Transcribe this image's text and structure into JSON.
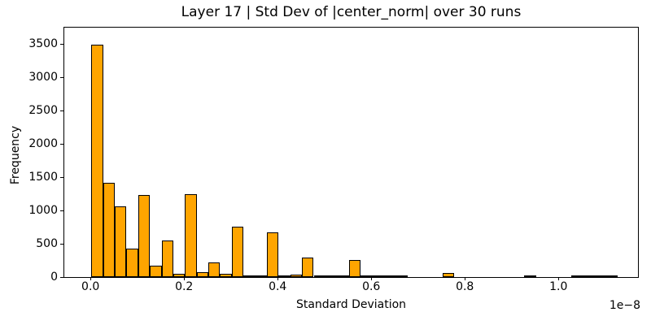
{
  "chart_data": {
    "type": "bar",
    "subtype": "histogram",
    "title": "Layer 17 | Std Dev of |center_norm| over 30 runs",
    "xlabel": "Standard Deviation",
    "ylabel": "Frequency",
    "x_offset_text": "1e−8",
    "bar_color": "#ffa500",
    "bar_edge_color": "#000000",
    "grid": false,
    "x_unit_multiplier": 1e-08,
    "bin_start": 0.002,
    "bin_width": 0.025,
    "counts": [
      3490,
      1415,
      1055,
      430,
      1235,
      165,
      545,
      55,
      1245,
      70,
      215,
      45,
      755,
      15,
      30,
      670,
      25,
      35,
      290,
      10,
      10,
      10,
      250,
      8,
      8,
      8,
      25,
      0,
      0,
      0,
      65,
      0,
      0,
      0,
      0,
      0,
      0,
      20,
      0,
      0,
      0,
      10,
      10,
      10,
      10,
      0
    ],
    "xlim": [
      -0.056,
      1.17
    ],
    "ylim": [
      0,
      3740
    ],
    "xticks": {
      "values": [
        0.0,
        0.2,
        0.4,
        0.6,
        0.8,
        1.0
      ],
      "labels": [
        "0.0",
        "0.2",
        "0.4",
        "0.6",
        "0.8",
        "1.0"
      ]
    },
    "yticks": {
      "values": [
        0,
        500,
        1000,
        1500,
        2000,
        2500,
        3000,
        3500
      ],
      "labels": [
        "0",
        "500",
        "1000",
        "1500",
        "2000",
        "2500",
        "3000",
        "3500"
      ]
    }
  }
}
